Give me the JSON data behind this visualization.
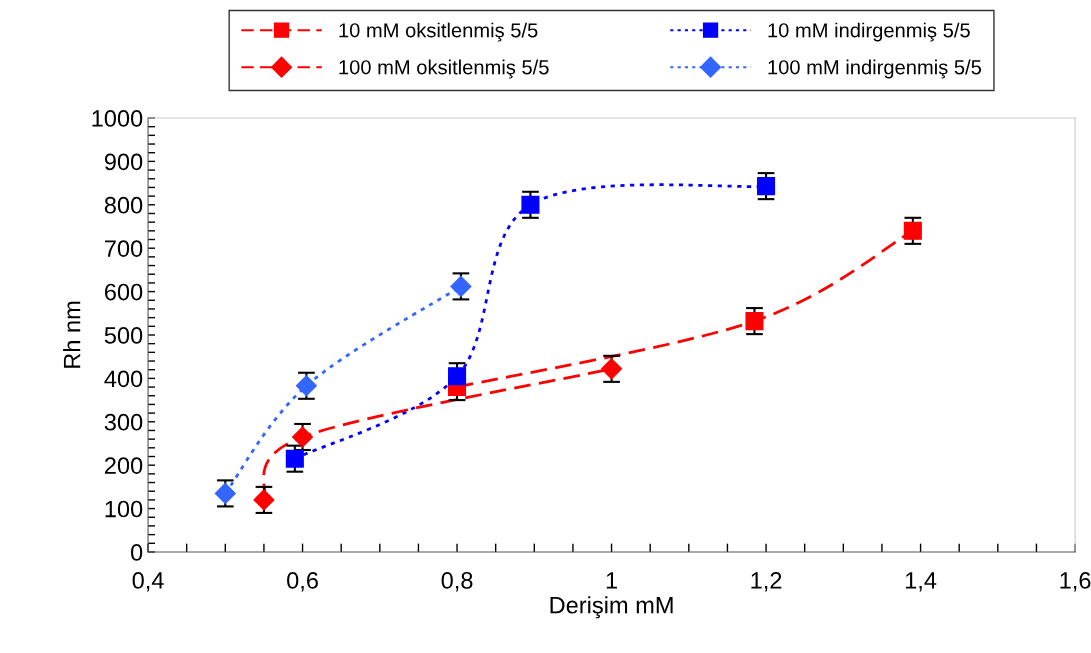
{
  "chart_data": {
    "type": "line",
    "xlabel": "Derişim mM",
    "ylabel": "Rh nm",
    "xlim": [
      0.4,
      1.6
    ],
    "ylim": [
      0,
      1000
    ],
    "xticks": [
      {
        "value": 0.4,
        "label": "0,4"
      },
      {
        "value": 0.45,
        "label": null
      },
      {
        "value": 0.5,
        "label": null
      },
      {
        "value": 0.55,
        "label": null
      },
      {
        "value": 0.6,
        "label": "0,6"
      },
      {
        "value": 0.65,
        "label": null
      },
      {
        "value": 0.7,
        "label": null
      },
      {
        "value": 0.75,
        "label": null
      },
      {
        "value": 0.8,
        "label": "0,8"
      },
      {
        "value": 0.85,
        "label": null
      },
      {
        "value": 0.9,
        "label": null
      },
      {
        "value": 0.95,
        "label": null
      },
      {
        "value": 1.0,
        "label": "1"
      },
      {
        "value": 1.05,
        "label": null
      },
      {
        "value": 1.1,
        "label": null
      },
      {
        "value": 1.15,
        "label": null
      },
      {
        "value": 1.2,
        "label": "1,2"
      },
      {
        "value": 1.25,
        "label": null
      },
      {
        "value": 1.3,
        "label": null
      },
      {
        "value": 1.35,
        "label": null
      },
      {
        "value": 1.4,
        "label": "1,4"
      },
      {
        "value": 1.45,
        "label": null
      },
      {
        "value": 1.5,
        "label": null
      },
      {
        "value": 1.55,
        "label": null
      },
      {
        "value": 1.6,
        "label": "1,6"
      }
    ],
    "yticks": [
      0,
      {
        "value": 20,
        "label": null
      },
      {
        "value": 40,
        "label": null
      },
      {
        "value": 60,
        "label": null
      },
      {
        "value": 80,
        "label": null
      },
      100,
      {
        "value": 120,
        "label": null
      },
      {
        "value": 140,
        "label": null
      },
      {
        "value": 160,
        "label": null
      },
      {
        "value": 180,
        "label": null
      },
      200,
      {
        "value": 220,
        "label": null
      },
      {
        "value": 240,
        "label": null
      },
      {
        "value": 260,
        "label": null
      },
      {
        "value": 280,
        "label": null
      },
      300,
      {
        "value": 320,
        "label": null
      },
      {
        "value": 340,
        "label": null
      },
      {
        "value": 360,
        "label": null
      },
      {
        "value": 380,
        "label": null
      },
      400,
      {
        "value": 420,
        "label": null
      },
      {
        "value": 440,
        "label": null
      },
      {
        "value": 460,
        "label": null
      },
      {
        "value": 480,
        "label": null
      },
      500,
      {
        "value": 520,
        "label": null
      },
      {
        "value": 540,
        "label": null
      },
      {
        "value": 560,
        "label": null
      },
      {
        "value": 580,
        "label": null
      },
      600,
      {
        "value": 620,
        "label": null
      },
      {
        "value": 640,
        "label": null
      },
      {
        "value": 660,
        "label": null
      },
      {
        "value": 680,
        "label": null
      },
      700,
      {
        "value": 720,
        "label": null
      },
      {
        "value": 740,
        "label": null
      },
      {
        "value": 760,
        "label": null
      },
      {
        "value": 780,
        "label": null
      },
      800,
      {
        "value": 820,
        "label": null
      },
      {
        "value": 840,
        "label": null
      },
      {
        "value": 860,
        "label": null
      },
      {
        "value": 880,
        "label": null
      },
      900,
      {
        "value": 920,
        "label": null
      },
      {
        "value": 940,
        "label": null
      },
      {
        "value": 960,
        "label": null
      },
      {
        "value": 980,
        "label": null
      },
      1000
    ],
    "grid": false,
    "legend": "top",
    "series": [
      {
        "name": "10 mM oksitlenmiş 5/5",
        "color": "#ff0000",
        "marker": "square",
        "line_style": "dashed",
        "x": [
          0.8,
          1.185,
          1.39
        ],
        "values": [
          380,
          532,
          740
        ],
        "errors": [
          30,
          30,
          30
        ]
      },
      {
        "name": "10 mM indirgenmiş 5/5",
        "color": "#0000ff",
        "marker": "square",
        "line_style": "dotted",
        "x": [
          0.59,
          0.8,
          0.895,
          1.2
        ],
        "values": [
          215,
          405,
          800,
          843
        ],
        "errors": [
          30,
          30,
          30,
          30
        ]
      },
      {
        "name": "100 mM oksitlenmiş 5/5",
        "color": "#ff0000",
        "marker": "diamond",
        "line_style": "dashed",
        "x": [
          0.55,
          0.6,
          1.0
        ],
        "values": [
          120,
          265,
          422
        ],
        "errors": [
          30,
          30,
          30
        ]
      },
      {
        "name": "100 mM indirgenmiş 5/5",
        "color": "#3366ff",
        "marker": "diamond",
        "line_style": "dotted",
        "x": [
          0.5,
          0.605,
          0.805
        ],
        "values": [
          135,
          383,
          612
        ],
        "errors": [
          30,
          30,
          30
        ]
      }
    ]
  }
}
